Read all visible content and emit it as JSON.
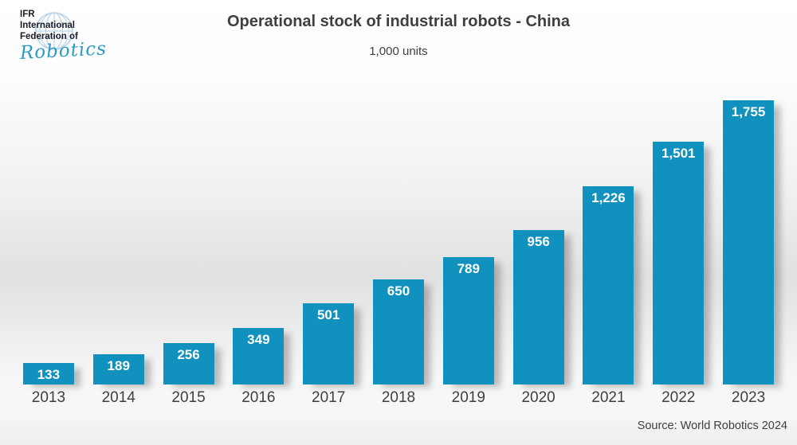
{
  "logo": {
    "line1": "IFR",
    "line2": "International",
    "line3": "Federation of",
    "script": "Robotics"
  },
  "header": {
    "title": "Operational stock of industrial robots - China",
    "subtitle": "1,000 units"
  },
  "source": "Source: World Robotics 2024",
  "colors": {
    "bar": "#1091be",
    "text": "#3f3f3f",
    "logo_text": "#1c1c28",
    "logo_script": "#2e9bc5",
    "globe_stroke": "#b9d6e6",
    "value_label": "#ffffff"
  },
  "chart_data": {
    "type": "bar",
    "title": "Operational stock of industrial robots - China",
    "xlabel": "",
    "ylabel": "1,000 units",
    "categories": [
      "2013",
      "2014",
      "2015",
      "2016",
      "2017",
      "2018",
      "2019",
      "2020",
      "2021",
      "2022",
      "2023"
    ],
    "values": [
      133,
      189,
      256,
      349,
      501,
      650,
      789,
      956,
      1226,
      1501,
      1755
    ],
    "value_labels": [
      "133",
      "189",
      "256",
      "349",
      "501",
      "650",
      "789",
      "956",
      "1,226",
      "1,501",
      "1,755"
    ],
    "ylim": [
      0,
      1755
    ],
    "grid": false,
    "legend": "none",
    "bar_color": "#1091be"
  }
}
